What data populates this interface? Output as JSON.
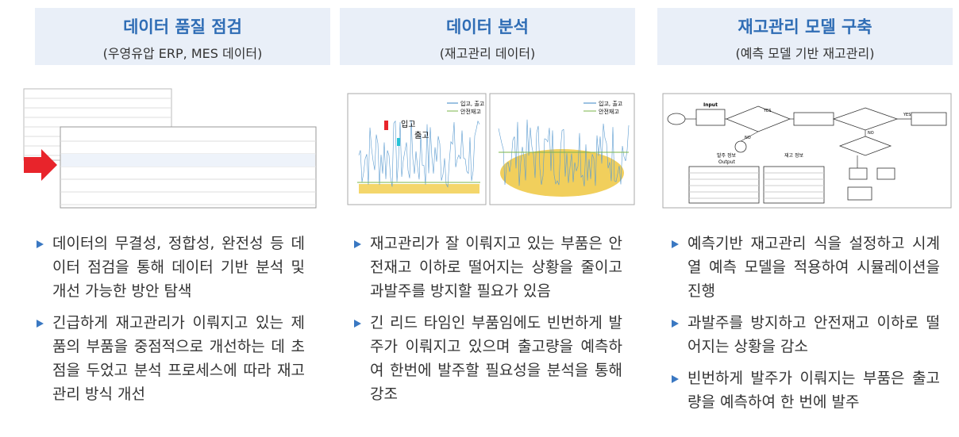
{
  "columns": [
    {
      "title": "데이터 품질 점검",
      "subtitle": "(우영유압 ERP, MES 데이터)",
      "bullets": [
        "데이터의 무결성, 정합성, 완전성 등 데이터 점검을 통해 데이터 기반 분석 및 개선 가능한 방안 탐색",
        "긴급하게 재고관리가 이뤄지고 있는 제품의 부품을 중점적으로 개선하는 데 초점을 두었고 분석 프로세스에 따라 재고관리 방식 개선"
      ]
    },
    {
      "title": "데이터 분석",
      "subtitle": "(재고관리 데이터)",
      "chart_labels": {
        "inbound": "입고",
        "outbound": "출고",
        "legend_io": "입고, 출고",
        "legend_safety": "안전재고"
      },
      "bullets": [
        "재고관리가 잘 이뤄지고 있는 부품은 안전재고 이하로 떨어지는 상황을 줄이고 과발주를 방지할 필요가 있음",
        "긴 리드 타임인 부품임에도 빈번하게 발주가 이뤄지고 있으며 출고량을 예측하여 한번에 발주할 필요성을 분석을 통해 강조"
      ]
    },
    {
      "title": "재고관리 모델 구축",
      "subtitle": "(예측 모델 기반 재고관리)",
      "flow_labels": {
        "input": "Input",
        "output": "Output",
        "yes": "YES",
        "no": "NO",
        "order_info": "발주 정보",
        "stock_info": "재고 정보"
      },
      "bullets": [
        "예측기반 재고관리 식을 설정하고 시계열 예측 모델을 적용하여 시뮬레이션을 진행",
        "과발주를 방지하고 안전재고 이하로 떨어지는 상황을 감소",
        "빈번하게 발주가 이뤄지는 부품은 출고량을 예측하여 한 번에 발주"
      ]
    }
  ]
}
